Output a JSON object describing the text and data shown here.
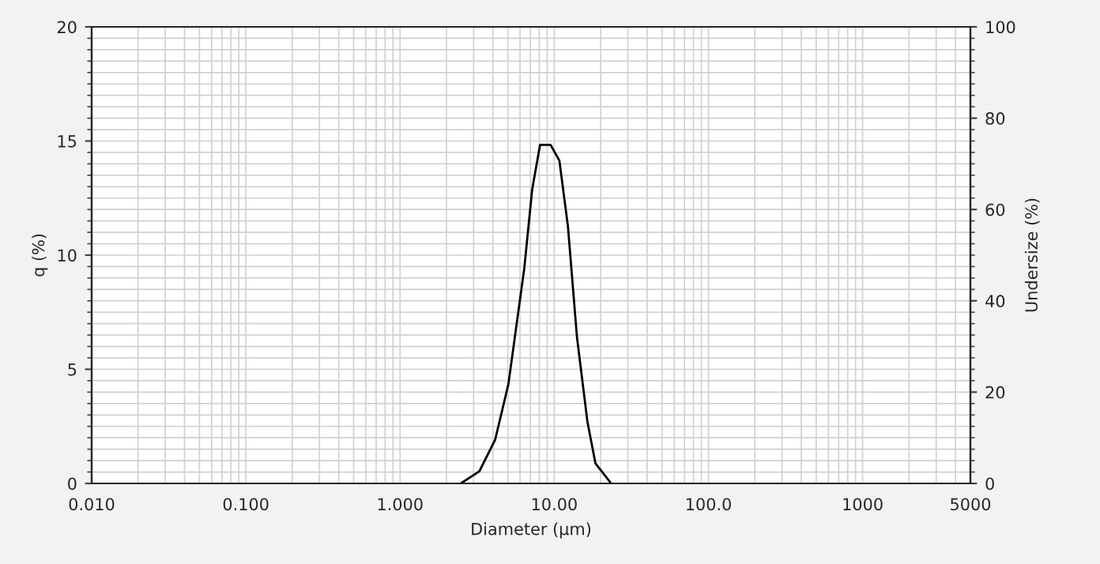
{
  "chart_data": {
    "type": "line",
    "xlabel": "Diameter (μm)",
    "ylabel": "q (%)",
    "y2label": "Undersize (%)",
    "log": "x",
    "grid": true,
    "marker": "none",
    "line_style": "solid",
    "series": [
      {
        "color": "#000000",
        "x": [
          2.48,
          3.27,
          4.14,
          5.04,
          6.39,
          7.19,
          8.09,
          9.47,
          10.8,
          12.27,
          14.04,
          16.4,
          18.5,
          23.4
        ],
        "values": [
          0,
          0.53,
          1.92,
          4.34,
          9.41,
          12.87,
          14.83,
          14.83,
          14.14,
          11.26,
          6.41,
          2.72,
          0.88,
          0
        ]
      }
    ],
    "xlim": [
      0.01,
      5000
    ],
    "xticks": [
      {
        "value": 0.01,
        "label": "0.010"
      },
      {
        "value": 0.1,
        "label": "0.100"
      },
      {
        "value": 1,
        "label": "1.000"
      },
      {
        "value": 10,
        "label": "10.00"
      },
      {
        "value": 100,
        "label": "100.0"
      },
      1000,
      5000
    ],
    "ylim": [
      0,
      20
    ],
    "yticks": [
      0,
      5,
      10,
      15,
      20
    ],
    "y2lim": [
      0,
      100
    ],
    "y2ticks": [
      0,
      20,
      40,
      60,
      80,
      100
    ]
  }
}
